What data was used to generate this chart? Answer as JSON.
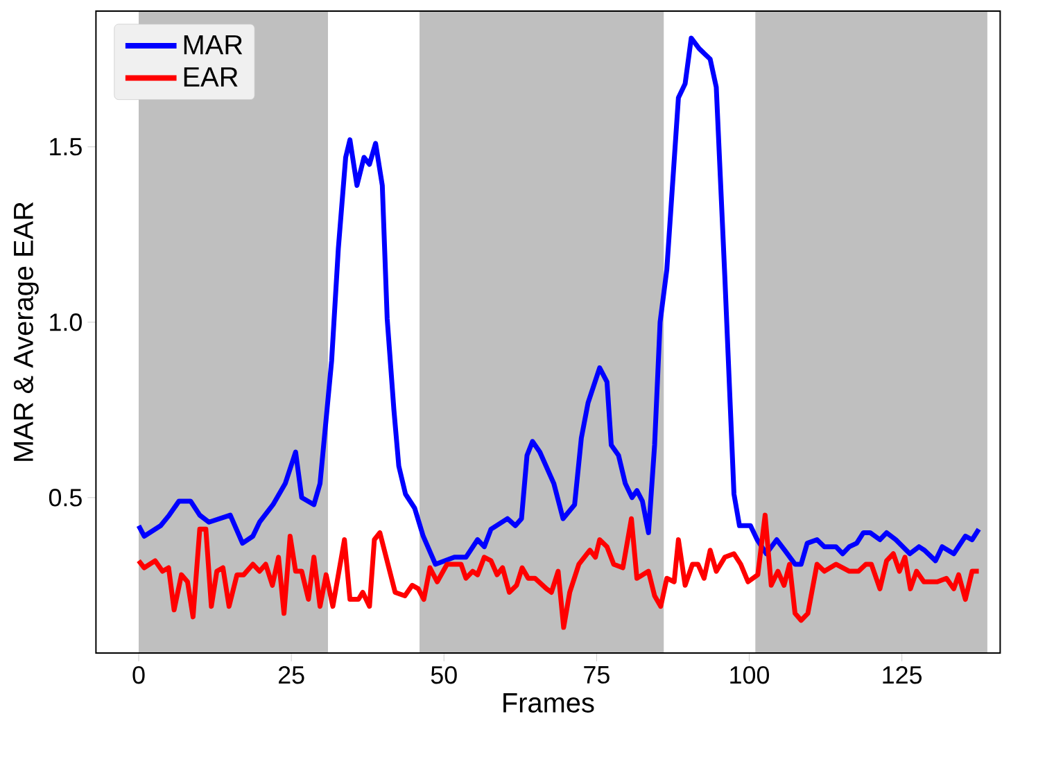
{
  "chart_data": {
    "type": "line",
    "xlabel": "Frames",
    "ylabel": "MAR & Average EAR",
    "xlim": [
      -7.0,
      141.1
    ],
    "ylim": [
      0.057,
      1.887
    ],
    "xticks": [
      0,
      25,
      50,
      75,
      100,
      125
    ],
    "yticks": [
      {
        "value": 0.5,
        "label": "0.5"
      },
      {
        "value": 1.0,
        "label": "1.0"
      },
      {
        "value": 1.5,
        "label": "1.5"
      }
    ],
    "bands": [
      {
        "axis": "x",
        "from": 0,
        "to": 31,
        "color": "#bfbfbf"
      },
      {
        "axis": "x",
        "from": 46,
        "to": 86,
        "color": "#bfbfbf"
      },
      {
        "axis": "x",
        "from": 101,
        "to": 139,
        "color": "#bfbfbf"
      }
    ],
    "legend": "top left",
    "series": [
      {
        "name": "MAR",
        "color": "#0000ff",
        "x": [
          0,
          0.9,
          3.6,
          5,
          6.6,
          8.5,
          10,
          11.5,
          15,
          17,
          18.7,
          19.8,
          22,
          24,
          25.7,
          26.7,
          28.7,
          29.7,
          31.6,
          32.7,
          33.9,
          34.6,
          35.75,
          36.9,
          37.8,
          38.8,
          39.9,
          40.7,
          41.8,
          42.6,
          43.7,
          45.2,
          46.6,
          48.6,
          51.7,
          53.6,
          55.5,
          56.6,
          57.7,
          60.4,
          61.7,
          62.7,
          63.6,
          64.5,
          65.7,
          68,
          69.5,
          71.4,
          72.5,
          73.6,
          75.5,
          76.7,
          77.4,
          78.6,
          79.7,
          80.8,
          81.6,
          82.5,
          83.5,
          84.5,
          85.4,
          86.5,
          88.4,
          89.5,
          90.5,
          91.8,
          93.6,
          94.6,
          96,
          97.5,
          98.4,
          100.2,
          101.3,
          102.8,
          104.5,
          105.8,
          107.5,
          108.5,
          109.5,
          111.1,
          112.3,
          114.2,
          115.3,
          116.4,
          117.6,
          118.7,
          119.8,
          121.4,
          122.5,
          124,
          126.3,
          127.8,
          128.7,
          130.5,
          131.6,
          133.5,
          135.4,
          136.5,
          137.6
        ],
        "values": [
          0.42,
          0.39,
          0.42,
          0.45,
          0.49,
          0.49,
          0.45,
          0.43,
          0.45,
          0.37,
          0.39,
          0.43,
          0.48,
          0.54,
          0.63,
          0.5,
          0.48,
          0.54,
          0.89,
          1.21,
          1.47,
          1.52,
          1.39,
          1.47,
          1.45,
          1.51,
          1.39,
          1.01,
          0.75,
          0.59,
          0.51,
          0.47,
          0.39,
          0.31,
          0.33,
          0.33,
          0.38,
          0.36,
          0.41,
          0.44,
          0.42,
          0.44,
          0.62,
          0.66,
          0.63,
          0.54,
          0.44,
          0.48,
          0.67,
          0.77,
          0.87,
          0.83,
          0.65,
          0.62,
          0.54,
          0.5,
          0.52,
          0.49,
          0.4,
          0.65,
          1.0,
          1.15,
          1.64,
          1.68,
          1.81,
          1.78,
          1.75,
          1.67,
          1.13,
          0.51,
          0.42,
          0.42,
          0.38,
          0.34,
          0.38,
          0.35,
          0.31,
          0.31,
          0.37,
          0.38,
          0.36,
          0.36,
          0.34,
          0.36,
          0.37,
          0.4,
          0.4,
          0.38,
          0.4,
          0.38,
          0.34,
          0.36,
          0.35,
          0.32,
          0.36,
          0.34,
          0.39,
          0.38,
          0.41
        ]
      },
      {
        "name": "EAR",
        "color": "#ff0000",
        "x": [
          0,
          0.9,
          2.7,
          3.9,
          4.9,
          5.8,
          7,
          8,
          8.9,
          10,
          11,
          11.9,
          12.8,
          13.8,
          14.8,
          16.1,
          17.2,
          18.7,
          19.8,
          20.8,
          21.9,
          22.9,
          23.8,
          24.8,
          25.7,
          26.7,
          27.8,
          28.7,
          29.7,
          30.7,
          31.8,
          33.7,
          34.6,
          36,
          36.7,
          37.8,
          38.6,
          39.5,
          42,
          43.6,
          44.8,
          45.8,
          46.7,
          47.7,
          48.9,
          50.5,
          52.8,
          53.6,
          54.7,
          55.5,
          56.6,
          57.7,
          58.7,
          59.6,
          60.7,
          61.9,
          62.8,
          63.8,
          64.9,
          66.8,
          67.6,
          68.7,
          69.6,
          70.6,
          72.1,
          73.9,
          74.8,
          75.5,
          76.7,
          77.8,
          79.3,
          80.7,
          81.6,
          83.5,
          84.5,
          85.5,
          86.5,
          87.7,
          88.4,
          89.5,
          90.7,
          91.6,
          92.6,
          93.6,
          94.6,
          96,
          97.5,
          98.6,
          99.8,
          101.4,
          102.6,
          103.6,
          104.7,
          105.7,
          106.6,
          107.5,
          108.5,
          109.6,
          111.1,
          112.3,
          114.2,
          116.4,
          117.9,
          119.1,
          120,
          121.4,
          122.5,
          123.6,
          124.6,
          125.5,
          126.4,
          127.4,
          128.6,
          130.8,
          132.3,
          133.5,
          134.3,
          135.4,
          136.5,
          137.6
        ],
        "values": [
          0.32,
          0.3,
          0.32,
          0.29,
          0.3,
          0.18,
          0.28,
          0.26,
          0.16,
          0.41,
          0.41,
          0.19,
          0.29,
          0.3,
          0.19,
          0.28,
          0.28,
          0.31,
          0.29,
          0.31,
          0.25,
          0.33,
          0.17,
          0.39,
          0.29,
          0.29,
          0.21,
          0.33,
          0.19,
          0.28,
          0.19,
          0.38,
          0.21,
          0.21,
          0.23,
          0.19,
          0.38,
          0.4,
          0.23,
          0.22,
          0.25,
          0.24,
          0.21,
          0.3,
          0.26,
          0.31,
          0.31,
          0.27,
          0.29,
          0.28,
          0.33,
          0.32,
          0.28,
          0.3,
          0.23,
          0.25,
          0.3,
          0.27,
          0.27,
          0.24,
          0.23,
          0.29,
          0.13,
          0.23,
          0.31,
          0.35,
          0.33,
          0.38,
          0.36,
          0.31,
          0.3,
          0.44,
          0.27,
          0.29,
          0.22,
          0.19,
          0.27,
          0.26,
          0.38,
          0.25,
          0.31,
          0.31,
          0.27,
          0.35,
          0.29,
          0.33,
          0.34,
          0.31,
          0.26,
          0.28,
          0.45,
          0.25,
          0.29,
          0.25,
          0.31,
          0.17,
          0.15,
          0.17,
          0.31,
          0.29,
          0.31,
          0.29,
          0.29,
          0.31,
          0.31,
          0.24,
          0.32,
          0.34,
          0.29,
          0.33,
          0.24,
          0.29,
          0.26,
          0.26,
          0.27,
          0.24,
          0.28,
          0.21,
          0.29,
          0.29
        ]
      }
    ]
  }
}
